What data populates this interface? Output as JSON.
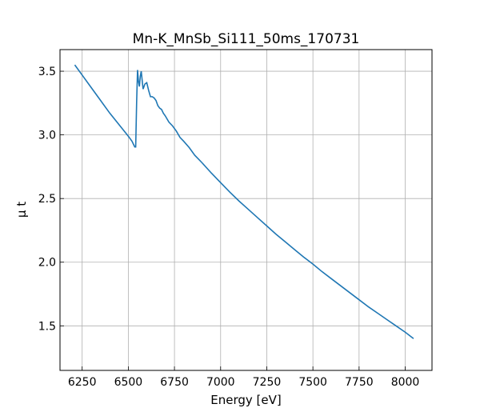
{
  "chart_data": {
    "type": "line",
    "title": "Mn-K_MnSb_Si111_50ms_170731",
    "xlabel": "Energy [eV]",
    "ylabel": "μ t",
    "xlim": [
      6130,
      8145
    ],
    "ylim": [
      1.15,
      3.67
    ],
    "xticks": [
      6250,
      6500,
      6750,
      7000,
      7250,
      7500,
      7750,
      8000
    ],
    "yticks": [
      1.5,
      2.0,
      2.5,
      3.0,
      3.5
    ],
    "xtick_labels": [
      "6250",
      "6500",
      "6750",
      "7000",
      "7250",
      "7500",
      "7750",
      "8000"
    ],
    "ytick_labels": [
      "1.5",
      "2.0",
      "2.5",
      "3.0",
      "3.5"
    ],
    "grid": true,
    "color": "#1f77b4",
    "series": [
      {
        "x": [
          6210,
          6250,
          6300,
          6350,
          6400,
          6450,
          6500,
          6520,
          6530,
          6535,
          6540,
          6545,
          6550,
          6555,
          6560,
          6565,
          6570,
          6580,
          6590,
          6600,
          6610,
          6620,
          6630,
          6640,
          6650,
          6660,
          6670,
          6680,
          6690,
          6700,
          6720,
          6740,
          6760,
          6780,
          6800,
          6830,
          6860,
          6880,
          6900,
          6950,
          7000,
          7050,
          7100,
          7150,
          7200,
          7250,
          7300,
          7350,
          7400,
          7450,
          7500,
          7550,
          7600,
          7650,
          7700,
          7750,
          7800,
          7850,
          7900,
          7950,
          8000,
          8045
        ],
        "y": [
          3.55,
          3.47,
          3.37,
          3.27,
          3.17,
          3.08,
          2.99,
          2.95,
          2.92,
          2.905,
          2.905,
          3.25,
          3.51,
          3.42,
          3.38,
          3.46,
          3.5,
          3.36,
          3.4,
          3.41,
          3.35,
          3.3,
          3.3,
          3.29,
          3.27,
          3.23,
          3.21,
          3.2,
          3.17,
          3.15,
          3.1,
          3.07,
          3.03,
          2.98,
          2.95,
          2.9,
          2.84,
          2.81,
          2.78,
          2.7,
          2.625,
          2.55,
          2.48,
          2.415,
          2.35,
          2.285,
          2.22,
          2.16,
          2.1,
          2.04,
          1.985,
          1.925,
          1.87,
          1.815,
          1.76,
          1.705,
          1.65,
          1.6,
          1.55,
          1.5,
          1.45,
          1.4
        ]
      }
    ]
  }
}
